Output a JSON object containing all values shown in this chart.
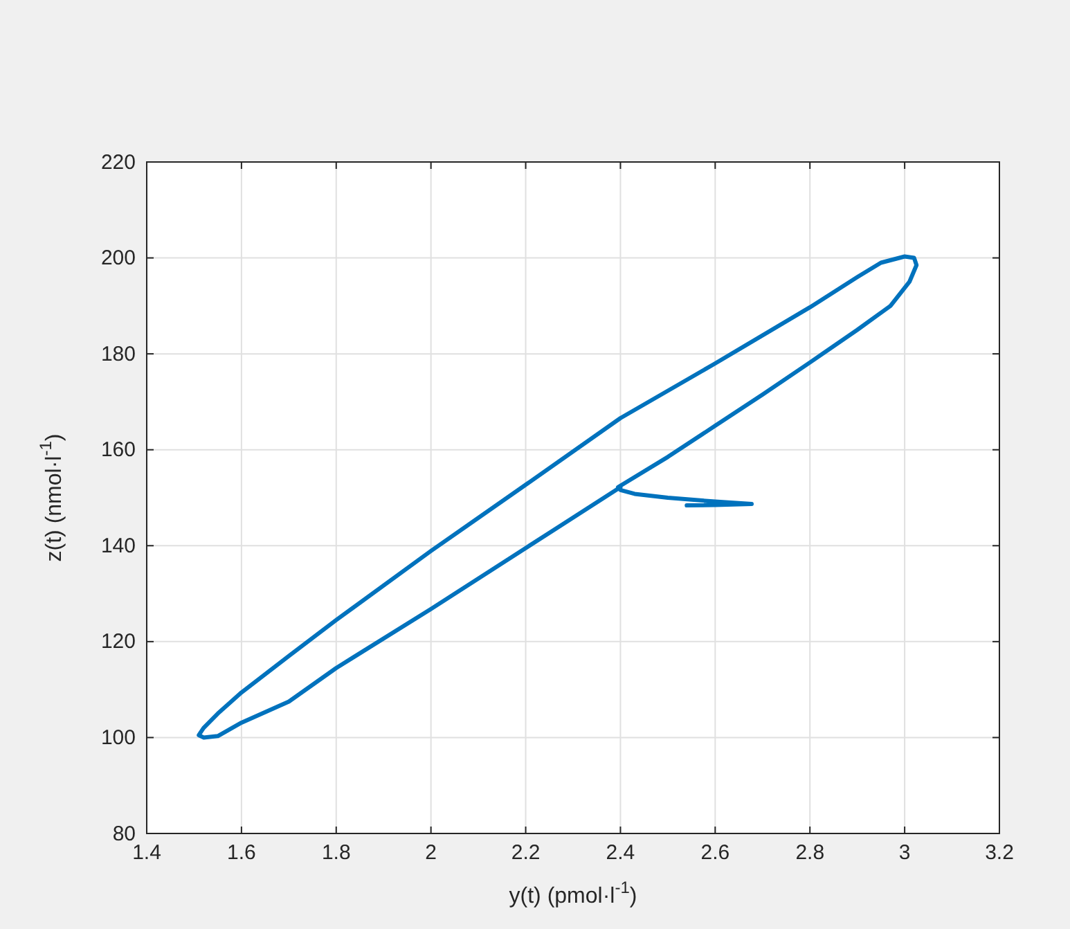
{
  "chart_data": {
    "type": "line",
    "xlabel": "y(t) (pmol·l$^{-1}$)",
    "ylabel": "z(t) (nmol·l$^{-1}$)",
    "xlim": [
      1.4,
      3.2
    ],
    "xticks": [
      1.4,
      1.6,
      1.8,
      2,
      2.2,
      2.4,
      2.6,
      2.8,
      3,
      3.2
    ],
    "ylim": [
      80,
      220
    ],
    "yticks": [
      80,
      100,
      120,
      140,
      160,
      180,
      200,
      220
    ],
    "grid": true,
    "line_style": "solid",
    "marker": "none",
    "series": [
      {
        "color": "#0072bd",
        "x": [
          2.54,
          2.6,
          2.677,
          2.6,
          2.5,
          2.43,
          2.4,
          2.395,
          2.5,
          2.6,
          2.7,
          2.8,
          2.9,
          2.97,
          3.01,
          3.025,
          3.02,
          3.0,
          2.95,
          2.9,
          2.8,
          2.6,
          2.4,
          2.2,
          2.0,
          1.8,
          1.7,
          1.6,
          1.55,
          1.52,
          1.51,
          1.52,
          1.55,
          1.6,
          1.7,
          1.8,
          2.0,
          2.2,
          2.4
        ],
        "values": [
          148.4,
          148.5,
          148.7,
          149.2,
          150,
          150.8,
          151.6,
          152.2,
          158.5,
          165,
          171.5,
          178.2,
          185,
          190,
          195,
          198.5,
          200,
          200.3,
          199,
          196,
          189.7,
          178,
          166.6,
          152.7,
          138.9,
          124.5,
          117,
          109.4,
          105,
          102,
          100.5,
          100,
          100.3,
          103.1,
          107.5,
          114.5,
          126.8,
          139.5,
          152.2
        ]
      }
    ]
  }
}
